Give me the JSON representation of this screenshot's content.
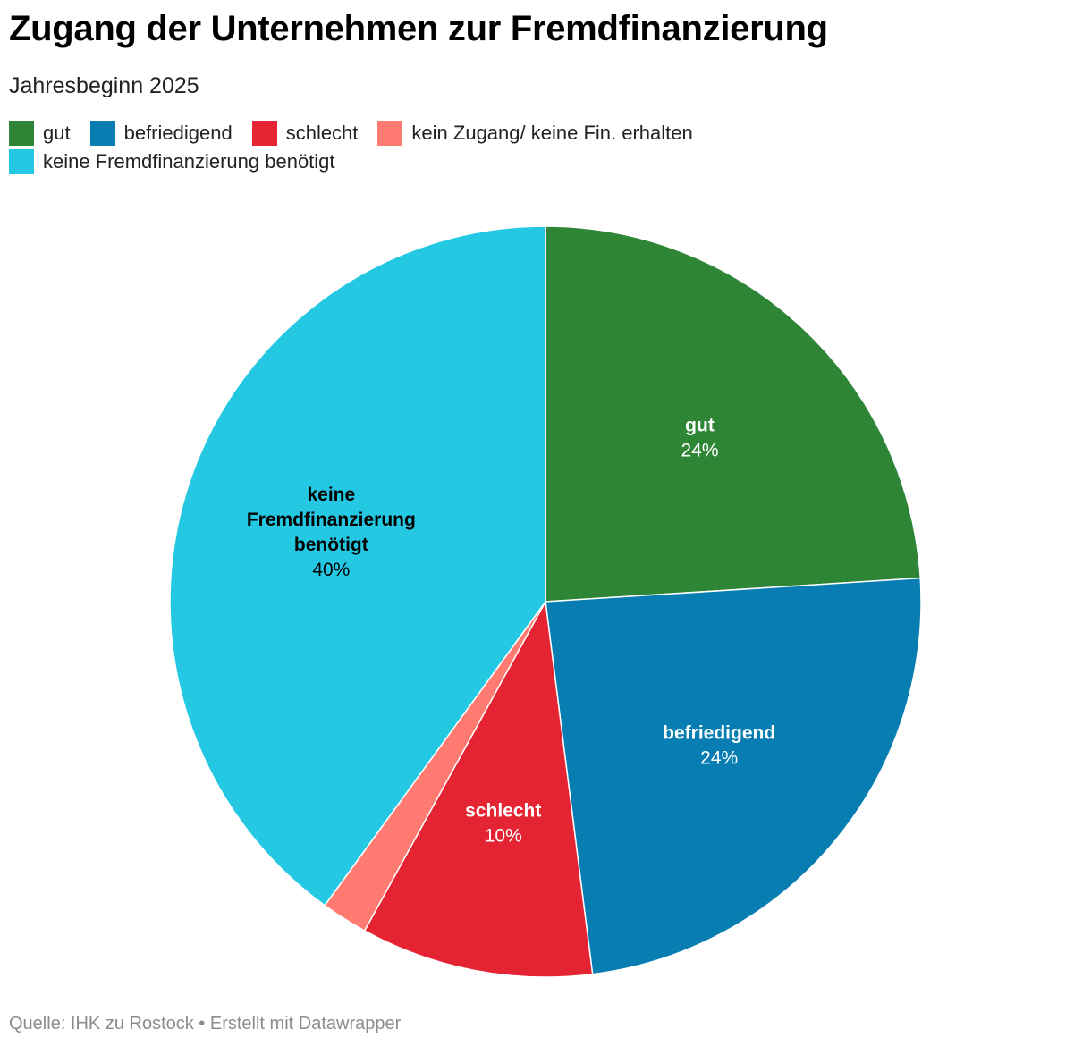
{
  "header": {
    "title": "Zugang der Unternehmen zur Fremdfinanzierung",
    "subtitle": "Jahresbeginn 2025"
  },
  "legend": {
    "row1": [
      {
        "label": "gut",
        "color": "#2e8536"
      },
      {
        "label": "befriedigend",
        "color": "#087db1"
      },
      {
        "label": "schlecht",
        "color": "#e52433"
      },
      {
        "label": "kein Zugang/ keine Fin. erhalten",
        "color": "#ff7a70"
      }
    ],
    "row2": [
      {
        "label": "keine Fremdfinanzierung benötigt",
        "color": "#25c8e3"
      }
    ]
  },
  "chart_data": {
    "type": "pie",
    "legend_position": "top-left",
    "slices": [
      {
        "label": "gut",
        "value": 24,
        "value_label": "24%",
        "color": "#2e8536",
        "text_color": "#ffffff",
        "label_lines": [
          "gut"
        ]
      },
      {
        "label": "befriedigend",
        "value": 24,
        "value_label": "24%",
        "color": "#087db1",
        "text_color": "#ffffff",
        "label_lines": [
          "befriedigend"
        ]
      },
      {
        "label": "schlecht",
        "value": 10,
        "value_label": "10%",
        "color": "#e52433",
        "text_color": "#ffffff",
        "label_lines": [
          "schlecht"
        ]
      },
      {
        "label": "kein Zugang/ keine Fin. erhalten",
        "value": 2,
        "value_label": "",
        "color": "#ff7a70",
        "text_color": "#000000",
        "label_lines": []
      },
      {
        "label": "keine Fremdfinanzierung benötigt",
        "value": 40,
        "value_label": "40%",
        "color": "#25c8e3",
        "text_color": "#000000",
        "label_lines": [
          "keine",
          "Fremdfinanzierung",
          "benötigt"
        ]
      }
    ]
  },
  "footer": {
    "source": "Quelle: IHK zu Rostock • Erstellt mit Datawrapper"
  }
}
